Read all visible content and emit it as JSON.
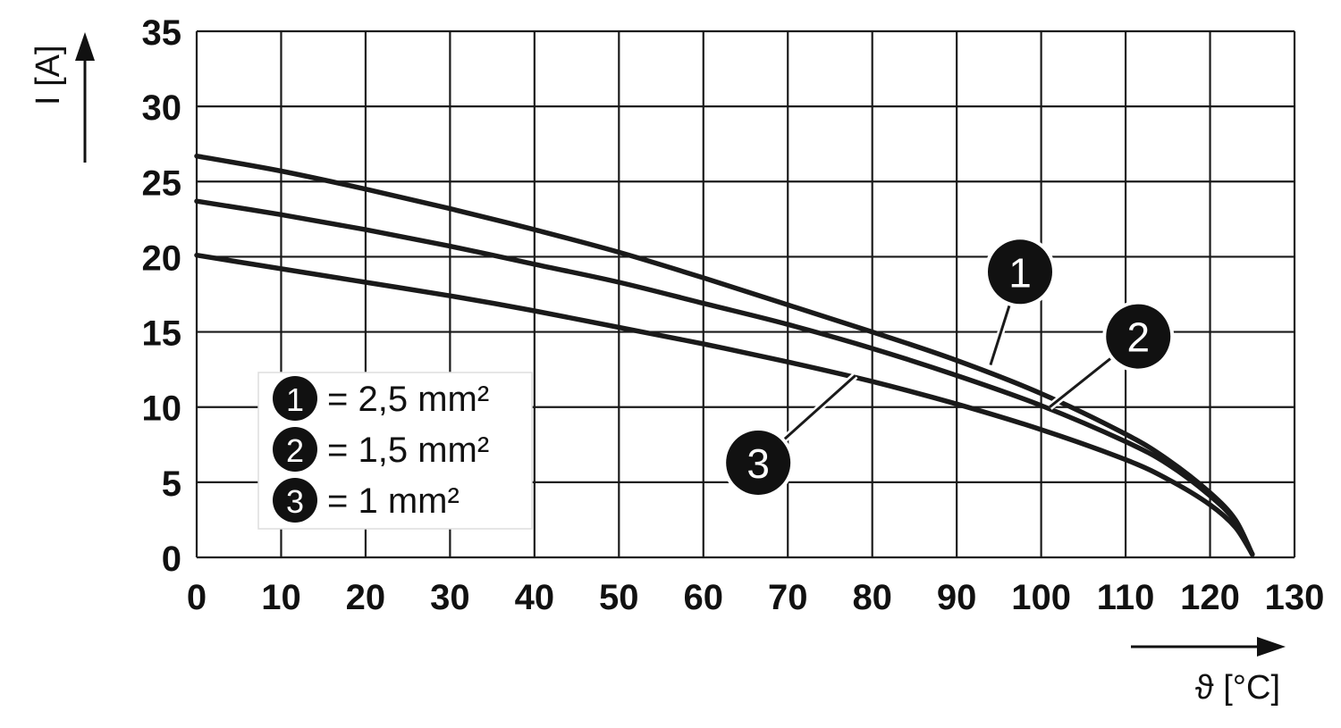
{
  "chart_data": {
    "type": "line",
    "title": "",
    "xlabel": "ϑ [°C]",
    "ylabel": "I [A]",
    "xlim": [
      0,
      130
    ],
    "ylim": [
      0,
      35
    ],
    "x_ticks": [
      0,
      10,
      20,
      30,
      40,
      50,
      60,
      70,
      80,
      90,
      100,
      110,
      120,
      130
    ],
    "y_ticks": [
      0,
      5,
      10,
      15,
      20,
      25,
      30,
      35
    ],
    "grid": true,
    "legend_position": "lower-left",
    "legend": [
      {
        "number": "1",
        "text": "= 2,5 mm²"
      },
      {
        "number": "2",
        "text": "= 1,5 mm²"
      },
      {
        "number": "3",
        "text": "= 1 mm²"
      }
    ],
    "series": [
      {
        "name": "1",
        "label": "2,5 mm²",
        "x": [
          0,
          10,
          20,
          30,
          40,
          50,
          60,
          70,
          80,
          90,
          100,
          110,
          115,
          120,
          123,
          125
        ],
        "y": [
          26.7,
          25.7,
          24.5,
          23.2,
          21.8,
          20.3,
          18.6,
          16.8,
          15.0,
          13.1,
          10.9,
          8.2,
          6.5,
          4.3,
          2.5,
          0.2
        ]
      },
      {
        "name": "2",
        "label": "1,5 mm²",
        "x": [
          0,
          10,
          20,
          30,
          40,
          50,
          60,
          70,
          80,
          90,
          100,
          110,
          115,
          120,
          123,
          125
        ],
        "y": [
          23.7,
          22.8,
          21.8,
          20.7,
          19.5,
          18.3,
          16.9,
          15.5,
          13.9,
          12.1,
          10.1,
          7.7,
          6.2,
          4.1,
          2.4,
          0.2
        ]
      },
      {
        "name": "3",
        "label": "1 mm²",
        "x": [
          0,
          10,
          20,
          30,
          40,
          50,
          60,
          70,
          80,
          90,
          100,
          110,
          115,
          120,
          123,
          125
        ],
        "y": [
          20.1,
          19.2,
          18.3,
          17.4,
          16.4,
          15.3,
          14.2,
          13.0,
          11.7,
          10.2,
          8.5,
          6.5,
          5.2,
          3.5,
          2.0,
          0.2
        ]
      }
    ],
    "annotations": [
      {
        "number": "1",
        "x": 97.5,
        "y": 19.0,
        "leader_to": [
          94,
          12.8
        ]
      },
      {
        "number": "2",
        "x": 111.5,
        "y": 14.7,
        "leader_to": [
          101,
          10.0
        ]
      },
      {
        "number": "3",
        "x": 66.5,
        "y": 6.3,
        "leader_to": [
          78,
          12.1
        ]
      }
    ],
    "colors": {
      "line": "#1a1a1a",
      "grid": "#1a1a1a",
      "badge": "#111111",
      "legend_border": "#dddddd"
    }
  }
}
